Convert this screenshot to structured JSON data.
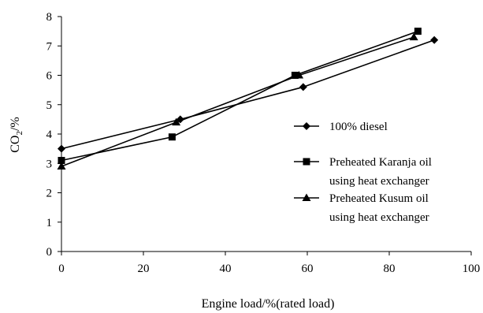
{
  "chart_data": {
    "type": "line",
    "title": "",
    "xlabel": "Engine load/%(rated load)",
    "ylabel_main": "CO",
    "ylabel_sub": "2",
    "ylabel_suffix": "/%",
    "xlim": [
      0,
      100
    ],
    "ylim": [
      0,
      8
    ],
    "xticks": [
      0,
      20,
      40,
      60,
      80,
      100
    ],
    "yticks": [
      0,
      1,
      2,
      3,
      4,
      5,
      6,
      7,
      8
    ],
    "grid": false,
    "legend_position": "right",
    "series": [
      {
        "name_lines": [
          "100% diesel"
        ],
        "marker": "diamond",
        "x": [
          0,
          29,
          59,
          91
        ],
        "y": [
          3.5,
          4.5,
          5.6,
          7.2
        ]
      },
      {
        "name_lines": [
          "Preheated Karanja oil",
          "using heat exchanger"
        ],
        "marker": "square",
        "x": [
          0,
          27,
          57,
          87
        ],
        "y": [
          3.1,
          3.9,
          6.0,
          7.5
        ]
      },
      {
        "name_lines": [
          "Preheated Kusum oil",
          "using heat exchanger"
        ],
        "marker": "triangle",
        "x": [
          0,
          28,
          58,
          86
        ],
        "y": [
          2.9,
          4.4,
          6.0,
          7.3
        ]
      }
    ],
    "colors": {
      "line": "#000000",
      "axis": "#000000"
    }
  }
}
